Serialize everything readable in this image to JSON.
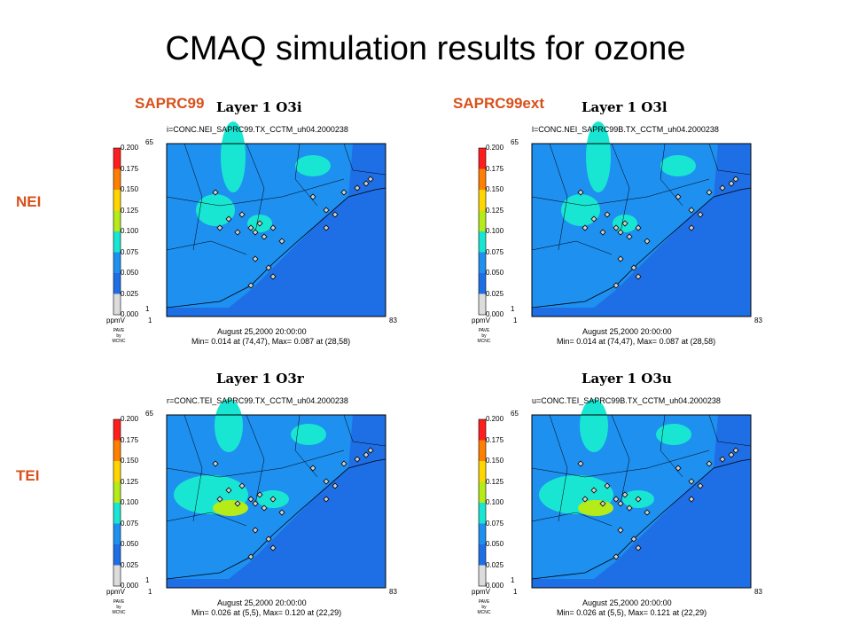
{
  "slide_title": "CMAQ simulation results for ozone",
  "col_labels": [
    "SAPRC99",
    "SAPRC99ext"
  ],
  "row_labels": [
    "NEI",
    "TEI"
  ],
  "colors": {
    "label_orange": "#d8501a",
    "scale": [
      "#dcdcdc",
      "#1e6fe6",
      "#1e90f0",
      "#19e6d2",
      "#b4eb19",
      "#ffd700",
      "#ff7f00",
      "#ff1e1e"
    ],
    "domain_fill": "#1e6fe6"
  },
  "chart_data": [
    {
      "type": "heatmap",
      "title": "Layer 1  O3i",
      "file_label": "i=CONC.NEI_SAPRC99.TX_CCTM_uh04.2000238",
      "unit": "ppmV",
      "credit": [
        "PAVE",
        "by",
        "MCNC"
      ],
      "color_scale_ticks": [
        "0.200",
        "0.175",
        "0.150",
        "0.125",
        "0.100",
        "0.075",
        "0.050",
        "0.025",
        "0.000"
      ],
      "x_range_labels": [
        "1",
        "83"
      ],
      "y_range_labels": [
        "1",
        "65"
      ],
      "datetime": "August 25,2000 20:00:00",
      "min_max": "Min=   0.014 at (74,47), Max=   0.087 at (28,58)"
    },
    {
      "type": "heatmap",
      "title": "Layer 1  O3l",
      "file_label": "l=CONC.NEI_SAPRC99B.TX_CCTM_uh04.2000238",
      "unit": "ppmV",
      "credit": [
        "PAVE",
        "by",
        "MCNC"
      ],
      "color_scale_ticks": [
        "0.200",
        "0.175",
        "0.150",
        "0.125",
        "0.100",
        "0.075",
        "0.050",
        "0.025",
        "0.000"
      ],
      "x_range_labels": [
        "1",
        "83"
      ],
      "y_range_labels": [
        "1",
        "65"
      ],
      "datetime": "August 25,2000 20:00:00",
      "min_max": "Min=   0.014 at (74,47), Max=   0.087 at (28,58)"
    },
    {
      "type": "heatmap",
      "title": "Layer 1  O3r",
      "file_label": "r=CONC.TEI_SAPRC99.TX_CCTM_uh04.2000238",
      "unit": "ppmV",
      "credit": [
        "PAVE",
        "by",
        "MCNC"
      ],
      "color_scale_ticks": [
        "0.200",
        "0.175",
        "0.150",
        "0.125",
        "0.100",
        "0.075",
        "0.050",
        "0.025",
        "0.000"
      ],
      "x_range_labels": [
        "1",
        "83"
      ],
      "y_range_labels": [
        "1",
        "65"
      ],
      "datetime": "August 25,2000 20:00:00",
      "min_max": "Min=   0.026 at (5,5), Max=   0.120 at (22,29)"
    },
    {
      "type": "heatmap",
      "title": "Layer 1  O3u",
      "file_label": "u=CONC.TEI_SAPRC99B.TX_CCTM_uh04.2000238",
      "unit": "ppmV",
      "credit": [
        "PAVE",
        "by",
        "MCNC"
      ],
      "color_scale_ticks": [
        "0.200",
        "0.175",
        "0.150",
        "0.125",
        "0.100",
        "0.075",
        "0.050",
        "0.025",
        "0.000"
      ],
      "x_range_labels": [
        "1",
        "83"
      ],
      "y_range_labels": [
        "1",
        "65"
      ],
      "datetime": "August 25,2000 20:00:00",
      "min_max": "Min=   0.026 at (5,5), Max=   0.121 at (22,29)"
    }
  ]
}
